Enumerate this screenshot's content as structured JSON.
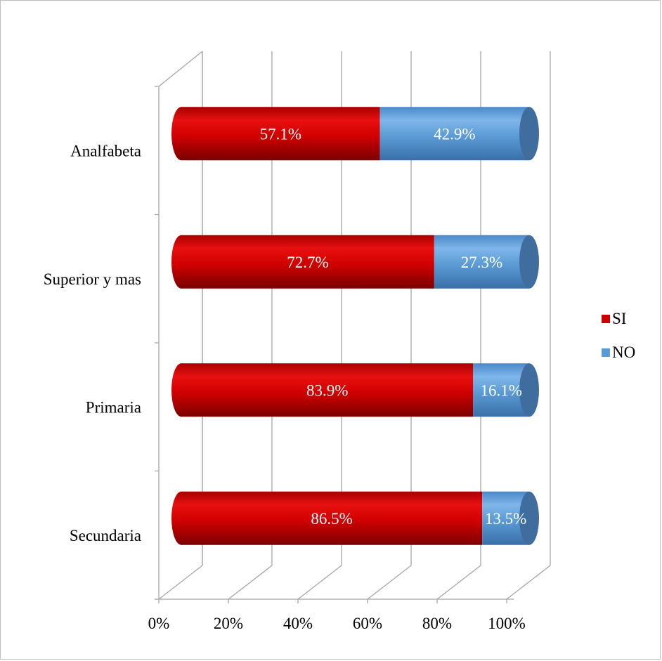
{
  "chart_data": {
    "type": "bar",
    "orientation": "horizontal",
    "stacked": true,
    "percent_stacked": true,
    "style": "3d-cylinder",
    "categories": [
      "Analfabeta",
      "Superior y mas",
      "Primaria",
      "Secundaria"
    ],
    "series": [
      {
        "name": "SI",
        "color": "#cc0000",
        "values": [
          57.1,
          72.7,
          83.9,
          86.5
        ],
        "labels": [
          "57.1%",
          "72.7%",
          "83.9%",
          "86.5%"
        ]
      },
      {
        "name": "NO",
        "color": "#5b9bd5",
        "values": [
          42.9,
          27.3,
          16.1,
          13.5
        ],
        "labels": [
          "42.9%",
          "27.3%",
          "16.1%",
          "13.5%"
        ]
      }
    ],
    "x_ticks": [
      0,
      20,
      40,
      60,
      80,
      100
    ],
    "x_tick_labels": [
      "0%",
      "20%",
      "40%",
      "60%",
      "80%",
      "100%"
    ],
    "xlim": [
      0,
      100
    ],
    "grid": true,
    "legend": "right"
  }
}
